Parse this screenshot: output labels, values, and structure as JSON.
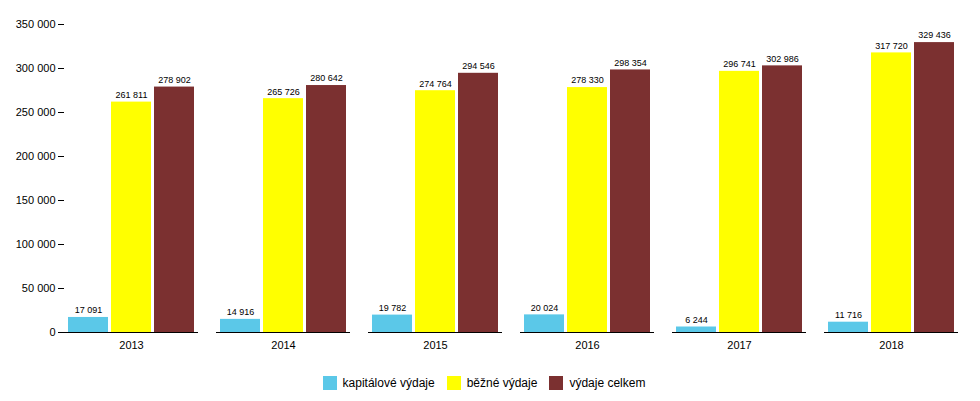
{
  "chart_data": {
    "type": "bar",
    "categories": [
      "2013",
      "2014",
      "2015",
      "2016",
      "2017",
      "2018"
    ],
    "series": [
      {
        "name": "kapitálové výdaje",
        "color": "#5bc8e8",
        "values": [
          17091,
          14916,
          19782,
          20024,
          6244,
          11716
        ],
        "value_labels": [
          "17 091",
          "14 916",
          "19 782",
          "20 024",
          "6 244",
          "11 716"
        ]
      },
      {
        "name": "běžné výdaje",
        "color": "#ffff00",
        "values": [
          261811,
          265726,
          274764,
          278330,
          296741,
          317720
        ],
        "value_labels": [
          "261 811",
          "265 726",
          "274 764",
          "278 330",
          "296 741",
          "317 720"
        ]
      },
      {
        "name": "výdaje celkem",
        "color": "#7b3030",
        "values": [
          278902,
          280642,
          294546,
          298354,
          302986,
          329436
        ],
        "value_labels": [
          "278 902",
          "280 642",
          "294 546",
          "298 354",
          "302 986",
          "329 436"
        ]
      }
    ],
    "ylim": [
      0,
      350000
    ],
    "yticks": [
      0,
      {
        "value": 50000,
        "label": "50 000"
      },
      {
        "value": 100000,
        "label": "100 000"
      },
      {
        "value": 150000,
        "label": "150 000"
      },
      {
        "value": 200000,
        "label": "200 000"
      },
      {
        "value": 250000,
        "label": "250 000"
      },
      {
        "value": 300000,
        "label": "300 000"
      },
      {
        "value": 350000,
        "label": "350 000"
      }
    ],
    "data_labels": true,
    "grid": false,
    "legend": "bottom"
  }
}
